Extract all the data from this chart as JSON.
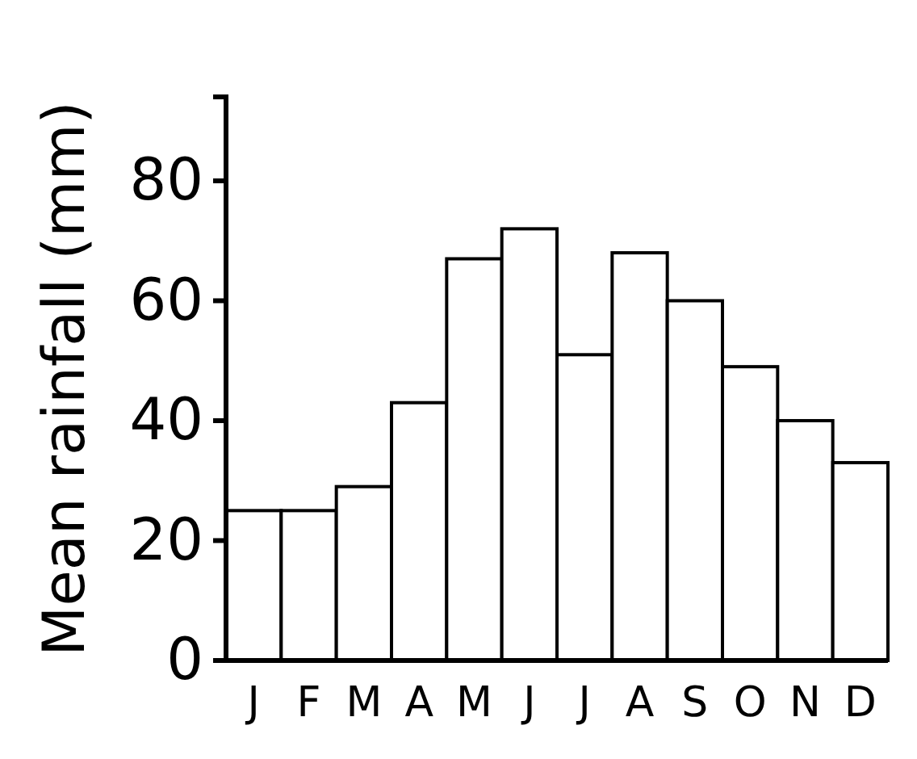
{
  "chart_data": {
    "type": "bar",
    "ylabel": "Mean rainfall (mm)",
    "categories": [
      "J",
      "F",
      "M",
      "A",
      "M",
      "J",
      "J",
      "A",
      "S",
      "O",
      "N",
      "D"
    ],
    "values": [
      25,
      25,
      29,
      43,
      67,
      72,
      51,
      68,
      60,
      49,
      40,
      33
    ],
    "color": "#ffffff",
    "ylim": [
      0,
      94
    ],
    "yticks": [
      0,
      20,
      40,
      60,
      80
    ],
    "grid": false
  }
}
